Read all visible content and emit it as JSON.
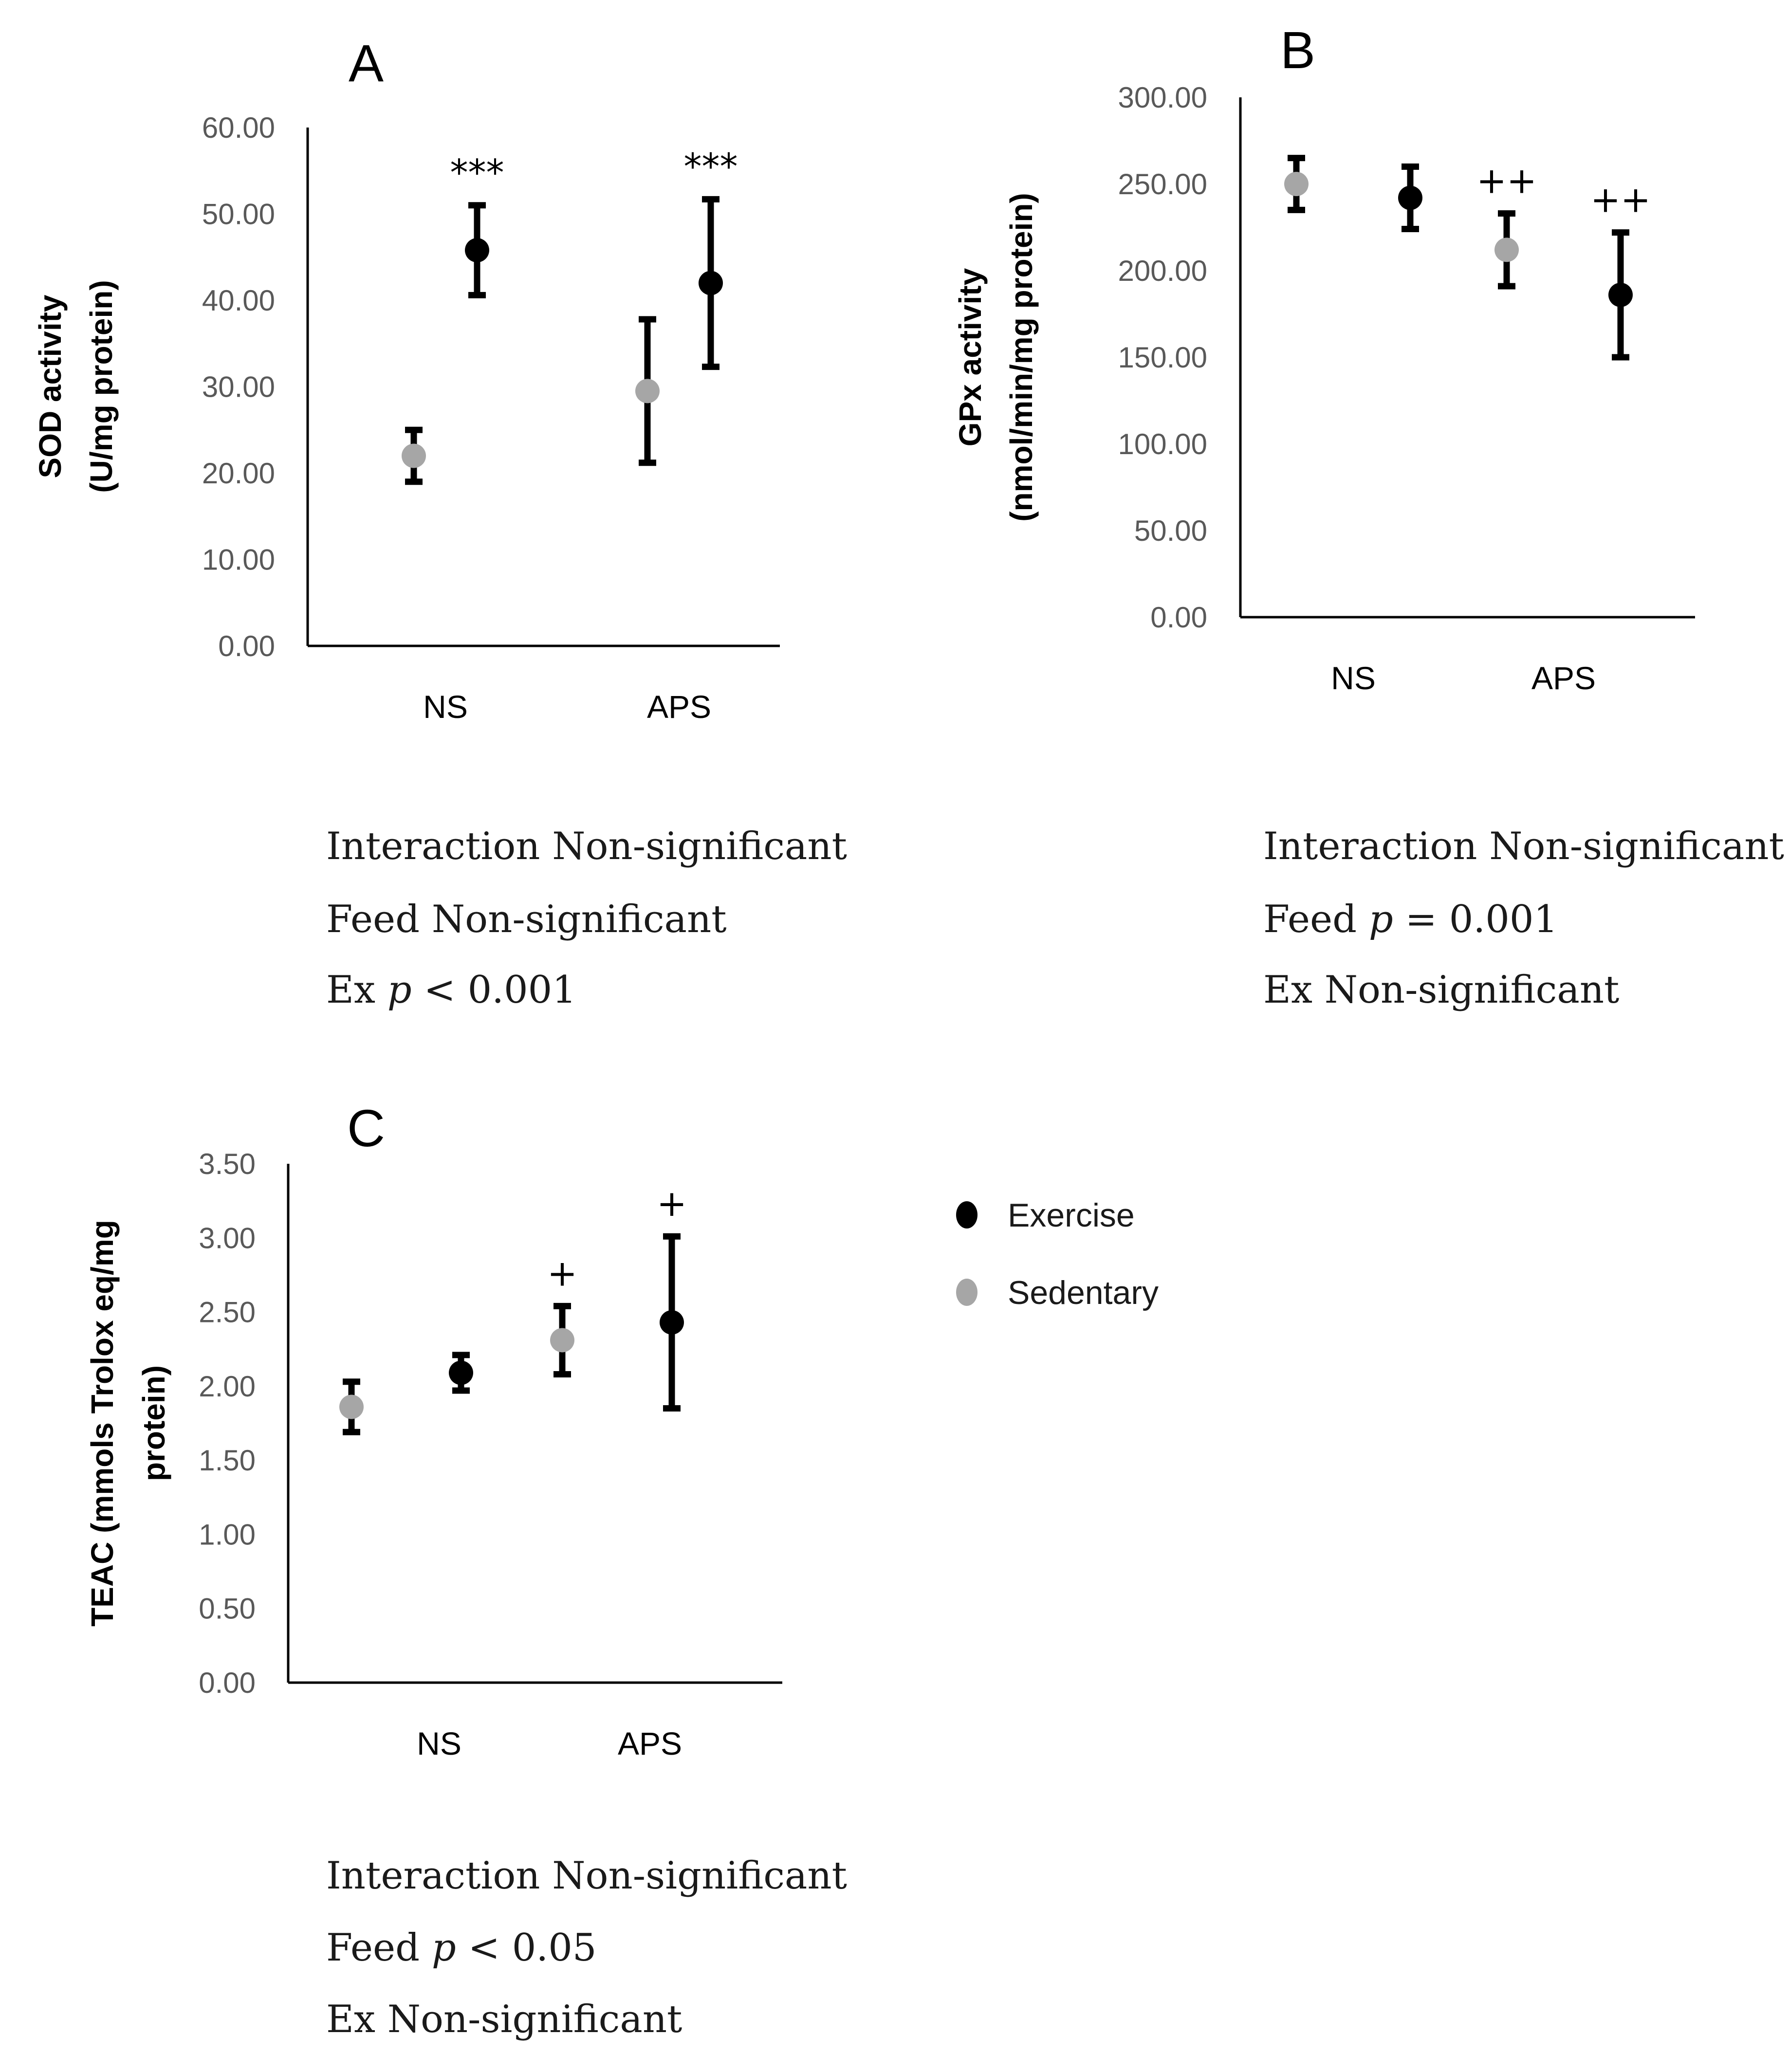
{
  "legend": {
    "items": [
      {
        "name": "Exercise",
        "color": "#000000"
      },
      {
        "name": "Sedentary",
        "color": "#a6a6a6"
      }
    ]
  },
  "colors": {
    "exercise": "#000000",
    "sedentary": "#a6a6a6",
    "axis": "#000000",
    "tick_text": "#595959"
  },
  "chart_data": [
    {
      "id": "A",
      "type": "scatter",
      "panel_label": "A",
      "ylabel_lines": [
        "SOD activity",
        "(U/mg protein)"
      ],
      "categories": [
        "NS",
        "APS"
      ],
      "ylim": [
        0,
        60
      ],
      "yticks": [
        "0.00",
        "10.00",
        "20.00",
        "30.00",
        "40.00",
        "50.00",
        "60.00"
      ],
      "series": [
        {
          "name": "Sedentary",
          "values": [
            22,
            29.5
          ],
          "errors": [
            3,
            8.3
          ]
        },
        {
          "name": "Exercise",
          "values": [
            45.8,
            42
          ],
          "errors": [
            5.2,
            9.7
          ]
        }
      ],
      "annotations": [
        {
          "series": "Exercise",
          "category": "NS",
          "text": "***"
        },
        {
          "series": "Exercise",
          "category": "APS",
          "text": "***"
        }
      ],
      "stats": [
        {
          "label": "Interaction Non-significant",
          "p": ""
        },
        {
          "label": "Feed Non-significant",
          "p": ""
        },
        {
          "label": "Ex ",
          "p": "p",
          "rest": " < 0.001"
        }
      ]
    },
    {
      "id": "B",
      "type": "scatter",
      "panel_label": "B",
      "ylabel_lines": [
        "GPx activity",
        "(nmol/min/mg protein)"
      ],
      "categories": [
        "NS",
        "APS"
      ],
      "ylim": [
        0,
        300
      ],
      "yticks": [
        "0.00",
        "50.00",
        "100.00",
        "150.00",
        "200.00",
        "250.00",
        "300.00"
      ],
      "series": [
        {
          "name": "Sedentary",
          "values": [
            250,
            212
          ],
          "errors": [
            15,
            21
          ]
        },
        {
          "name": "Exercise",
          "values": [
            242,
            186
          ],
          "errors": [
            18,
            36
          ]
        }
      ],
      "annotations": [
        {
          "series": "Sedentary",
          "category": "APS",
          "text": "++"
        },
        {
          "series": "Exercise",
          "category": "APS",
          "text": "++"
        }
      ],
      "stats": [
        {
          "label": "Interaction Non-significant",
          "p": ""
        },
        {
          "label": "Feed ",
          "p": "p",
          "rest": " = 0.001"
        },
        {
          "label": "Ex Non-significant",
          "p": ""
        }
      ]
    },
    {
      "id": "C",
      "type": "scatter",
      "panel_label": "C",
      "ylabel_lines": [
        "TEAC (mmols Trolox eq/mg",
        "protein)"
      ],
      "categories": [
        "NS",
        "APS"
      ],
      "ylim": [
        0,
        3.5
      ],
      "yticks": [
        "0.00",
        "0.50",
        "1.00",
        "1.50",
        "2.00",
        "2.50",
        "3.00",
        "3.50"
      ],
      "series": [
        {
          "name": "Sedentary",
          "values": [
            1.86,
            2.31
          ],
          "errors": [
            0.17,
            0.23
          ]
        },
        {
          "name": "Exercise",
          "values": [
            2.09,
            2.43
          ],
          "errors": [
            0.12,
            0.58
          ]
        }
      ],
      "annotations": [
        {
          "series": "Sedentary",
          "category": "APS",
          "text": "+"
        },
        {
          "series": "Exercise",
          "category": "APS",
          "text": "+"
        }
      ],
      "stats": [
        {
          "label": "Interaction Non-significant",
          "p": ""
        },
        {
          "label": "Feed ",
          "p": "p",
          "rest": " < 0.05"
        },
        {
          "label": "Ex Non-significant",
          "p": ""
        }
      ]
    }
  ]
}
